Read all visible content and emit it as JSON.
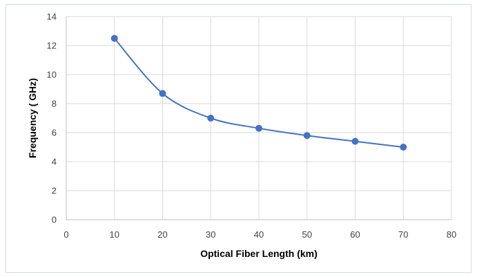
{
  "chart_data": {
    "type": "line",
    "smooth": true,
    "markers": true,
    "title": "",
    "xlabel": "Optical Fiber Length (km)",
    "ylabel": "Frequency ( GHz)",
    "xlim": [
      0,
      80
    ],
    "ylim": [
      0,
      14
    ],
    "xticks": [
      0,
      10,
      20,
      30,
      40,
      50,
      60,
      70,
      80
    ],
    "yticks": [
      0,
      2,
      4,
      6,
      8,
      10,
      12,
      14
    ],
    "grid": true,
    "legend": "none",
    "series": [
      {
        "x": [
          10,
          20,
          30,
          40,
          50,
          60,
          70
        ],
        "y": [
          12.5,
          8.7,
          7.0,
          6.3,
          5.8,
          5.4,
          5.0
        ],
        "color": "#4472c4"
      }
    ]
  }
}
